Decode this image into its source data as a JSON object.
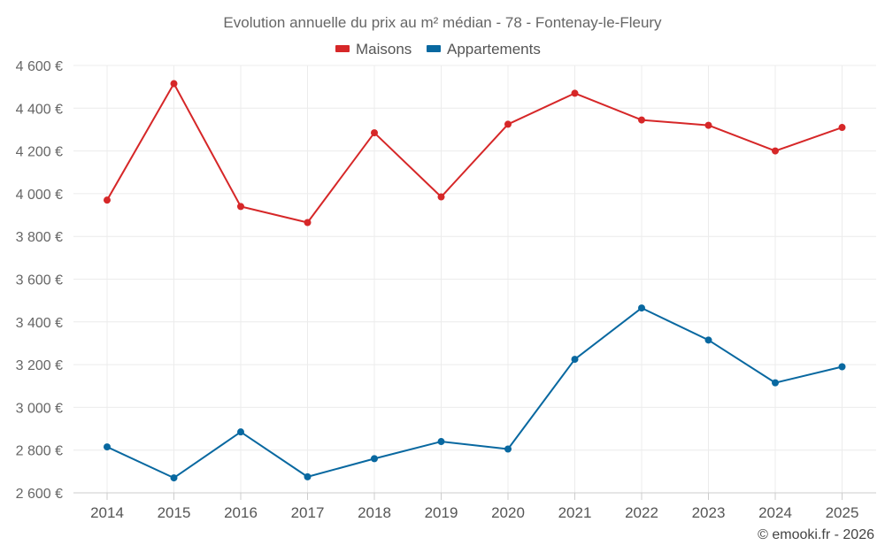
{
  "chart_data": {
    "type": "line",
    "title": "Evolution annuelle du prix au m² médian - 78 - Fontenay-le-Fleury",
    "xlabel": "",
    "ylabel": "",
    "categories": [
      "2014",
      "2015",
      "2016",
      "2017",
      "2018",
      "2019",
      "2020",
      "2021",
      "2022",
      "2023",
      "2024",
      "2025"
    ],
    "y_ticks": [
      2600,
      2800,
      3000,
      3200,
      3400,
      3600,
      3800,
      4000,
      4200,
      4400,
      4600
    ],
    "y_tick_labels": [
      "2 600 €",
      "2 800 €",
      "3 000 €",
      "3 200 €",
      "3 400 €",
      "3 600 €",
      "3 800 €",
      "4 000 €",
      "4 200 €",
      "4 400 €",
      "4 600 €"
    ],
    "ylim": [
      2600,
      4600
    ],
    "grid": true,
    "legend_position": "top",
    "series": [
      {
        "name": "Maisons",
        "color": "#d62728",
        "values": [
          3970,
          4515,
          3940,
          3865,
          4285,
          3985,
          4325,
          4470,
          4345,
          4320,
          4200,
          4310
        ]
      },
      {
        "name": "Appartements",
        "color": "#0868a0",
        "values": [
          2815,
          2670,
          2885,
          2675,
          2760,
          2840,
          2805,
          3225,
          3465,
          3315,
          3115,
          3190
        ]
      }
    ],
    "credit": "© emooki.fr - 2026"
  }
}
